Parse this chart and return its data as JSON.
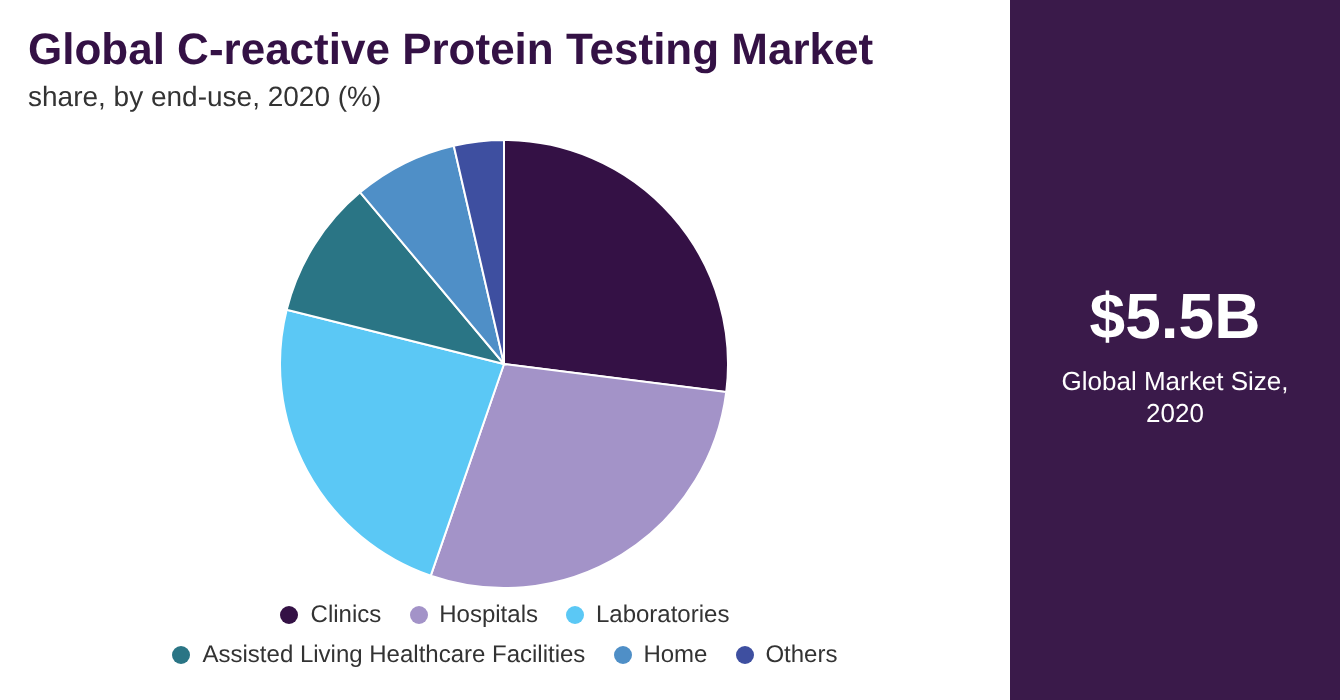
{
  "chart_data": {
    "type": "pie",
    "title": "Global C-reactive Protein Testing Market",
    "subtitle": "share, by end-use, 2020 (%)",
    "categories": [
      "Clinics",
      "Hospitals",
      "Laboratories",
      "Assisted Living Healthcare Facilities",
      "Home",
      "Others"
    ],
    "values": [
      27,
      28.3,
      23.6,
      10,
      7.5,
      3.6
    ],
    "colors": [
      "#341145",
      "#a393c8",
      "#5bc8f5",
      "#2a7585",
      "#4f8fc7",
      "#3e4fa0"
    ],
    "legend": "bottom",
    "annotations": [
      "$5.5B",
      "Global Market Size, 2020"
    ]
  }
}
